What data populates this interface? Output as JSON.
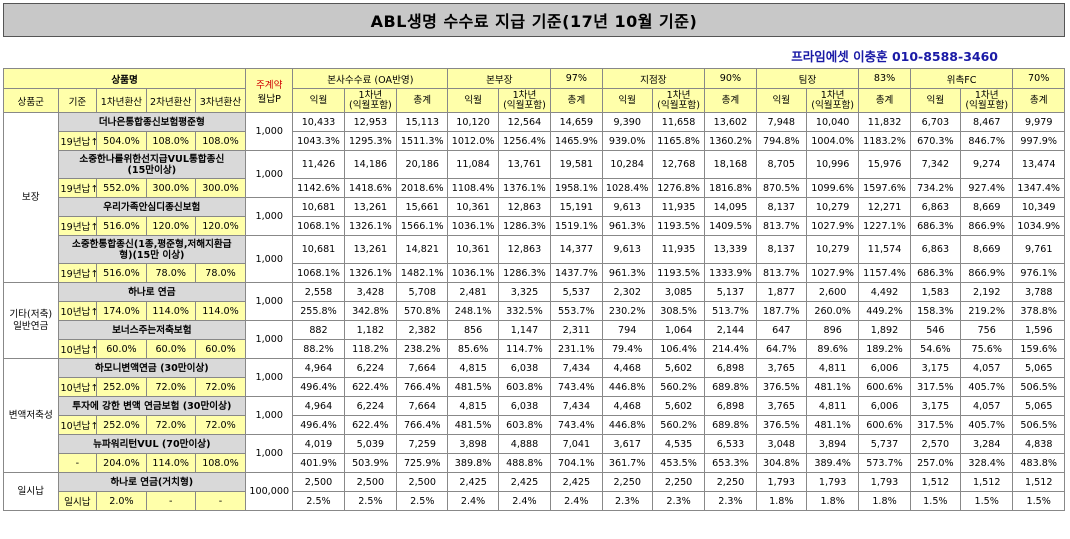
{
  "title": "ABL생명 수수료 지급 기준(17년 10월 기준)",
  "subtitle": "프라임에셋 이충훈 010-8588-3460",
  "header": {
    "product_group": "상품명",
    "monthly_top": "주계약",
    "monthly_bottom": "월납P",
    "sections": [
      {
        "label": "본사수수료 (OA반영)",
        "pct": ""
      },
      {
        "label": "본부장",
        "pct": "97%"
      },
      {
        "label": "지점장",
        "pct": "90%"
      },
      {
        "label": "팀장",
        "pct": "83%"
      },
      {
        "label": "위촉FC",
        "pct": "70%"
      }
    ],
    "sub_left": [
      "상품군",
      "기준",
      "1차년환산",
      "2차년환산",
      "3차년환산"
    ],
    "sub_cols": [
      "익월",
      "1차년\n(익월포함)",
      "총계"
    ]
  },
  "groups": [
    {
      "name": "보장",
      "products": [
        {
          "name": "더나은통합종신보험평준형",
          "monthly": "1,000",
          "basis": "19년납↑",
          "conv": [
            "504.0%",
            "108.0%",
            "108.0%"
          ],
          "amounts": [
            "10,433",
            "12,953",
            "15,113",
            "10,120",
            "12,564",
            "14,659",
            "9,390",
            "11,658",
            "13,602",
            "7,948",
            "10,040",
            "11,832",
            "6,703",
            "8,467",
            "9,979"
          ],
          "pcts": [
            "1043.3%",
            "1295.3%",
            "1511.3%",
            "1012.0%",
            "1256.4%",
            "1465.9%",
            "939.0%",
            "1165.8%",
            "1360.2%",
            "794.8%",
            "1004.0%",
            "1183.2%",
            "670.3%",
            "846.7%",
            "997.9%"
          ]
        },
        {
          "name": "소중한나를위한선지급VUL통합종신\n(15만이상)",
          "monthly": "1,000",
          "basis": "19년납↑",
          "conv": [
            "552.0%",
            "300.0%",
            "300.0%"
          ],
          "amounts": [
            "11,426",
            "14,186",
            "20,186",
            "11,084",
            "13,761",
            "19,581",
            "10,284",
            "12,768",
            "18,168",
            "8,705",
            "10,996",
            "15,976",
            "7,342",
            "9,274",
            "13,474"
          ],
          "pcts": [
            "1142.6%",
            "1418.6%",
            "2018.6%",
            "1108.4%",
            "1376.1%",
            "1958.1%",
            "1028.4%",
            "1276.8%",
            "1816.8%",
            "870.5%",
            "1099.6%",
            "1597.6%",
            "734.2%",
            "927.4%",
            "1347.4%"
          ]
        },
        {
          "name": "우리가족안심디종신보험",
          "monthly": "1,000",
          "basis": "19년납↑",
          "conv": [
            "516.0%",
            "120.0%",
            "120.0%"
          ],
          "amounts": [
            "10,681",
            "13,261",
            "15,661",
            "10,361",
            "12,863",
            "15,191",
            "9,613",
            "11,935",
            "14,095",
            "8,137",
            "10,279",
            "12,271",
            "6,863",
            "8,669",
            "10,349"
          ],
          "pcts": [
            "1068.1%",
            "1326.1%",
            "1566.1%",
            "1036.1%",
            "1286.3%",
            "1519.1%",
            "961.3%",
            "1193.5%",
            "1409.5%",
            "813.7%",
            "1027.9%",
            "1227.1%",
            "686.3%",
            "866.9%",
            "1034.9%"
          ]
        },
        {
          "name": "소중한통합종신(1종,평준형,저해지환급\n형)(15만 이상)",
          "monthly": "1,000",
          "basis": "19년납↑",
          "conv": [
            "516.0%",
            "78.0%",
            "78.0%"
          ],
          "amounts": [
            "10,681",
            "13,261",
            "14,821",
            "10,361",
            "12,863",
            "14,377",
            "9,613",
            "11,935",
            "13,339",
            "8,137",
            "10,279",
            "11,574",
            "6,863",
            "8,669",
            "9,761"
          ],
          "pcts": [
            "1068.1%",
            "1326.1%",
            "1482.1%",
            "1036.1%",
            "1286.3%",
            "1437.7%",
            "961.3%",
            "1193.5%",
            "1333.9%",
            "813.7%",
            "1027.9%",
            "1157.4%",
            "686.3%",
            "866.9%",
            "976.1%"
          ]
        }
      ]
    },
    {
      "name": "기타(저축)\n일반연금",
      "products": [
        {
          "name": "하나로 연금",
          "monthly": "1,000",
          "basis": "10년납↑",
          "conv": [
            "174.0%",
            "114.0%",
            "114.0%"
          ],
          "amounts": [
            "2,558",
            "3,428",
            "5,708",
            "2,481",
            "3,325",
            "5,537",
            "2,302",
            "3,085",
            "5,137",
            "1,877",
            "2,600",
            "4,492",
            "1,583",
            "2,192",
            "3,788"
          ],
          "pcts": [
            "255.8%",
            "342.8%",
            "570.8%",
            "248.1%",
            "332.5%",
            "553.7%",
            "230.2%",
            "308.5%",
            "513.7%",
            "187.7%",
            "260.0%",
            "449.2%",
            "158.3%",
            "219.2%",
            "378.8%"
          ]
        },
        {
          "name": "보너스주는저축보험",
          "monthly": "1,000",
          "basis": "10년납↑",
          "conv": [
            "60.0%",
            "60.0%",
            "60.0%"
          ],
          "amounts": [
            "882",
            "1,182",
            "2,382",
            "856",
            "1,147",
            "2,311",
            "794",
            "1,064",
            "2,144",
            "647",
            "896",
            "1,892",
            "546",
            "756",
            "1,596"
          ],
          "pcts": [
            "88.2%",
            "118.2%",
            "238.2%",
            "85.6%",
            "114.7%",
            "231.1%",
            "79.4%",
            "106.4%",
            "214.4%",
            "64.7%",
            "89.6%",
            "189.2%",
            "54.6%",
            "75.6%",
            "159.6%"
          ]
        }
      ]
    },
    {
      "name": "변액저축성",
      "products": [
        {
          "name": "하모니변액연금 (30만이상)",
          "monthly": "1,000",
          "basis": "10년납↑",
          "conv": [
            "252.0%",
            "72.0%",
            "72.0%"
          ],
          "amounts": [
            "4,964",
            "6,224",
            "7,664",
            "4,815",
            "6,038",
            "7,434",
            "4,468",
            "5,602",
            "6,898",
            "3,765",
            "4,811",
            "6,006",
            "3,175",
            "4,057",
            "5,065"
          ],
          "pcts": [
            "496.4%",
            "622.4%",
            "766.4%",
            "481.5%",
            "603.8%",
            "743.4%",
            "446.8%",
            "560.2%",
            "689.8%",
            "376.5%",
            "481.1%",
            "600.6%",
            "317.5%",
            "405.7%",
            "506.5%"
          ]
        },
        {
          "name": "투자에 강한 변액 연금보험 (30만이상)",
          "monthly": "1,000",
          "basis": "10년납↑",
          "conv": [
            "252.0%",
            "72.0%",
            "72.0%"
          ],
          "amounts": [
            "4,964",
            "6,224",
            "7,664",
            "4,815",
            "6,038",
            "7,434",
            "4,468",
            "5,602",
            "6,898",
            "3,765",
            "4,811",
            "6,006",
            "3,175",
            "4,057",
            "5,065"
          ],
          "pcts": [
            "496.4%",
            "622.4%",
            "766.4%",
            "481.5%",
            "603.8%",
            "743.4%",
            "446.8%",
            "560.2%",
            "689.8%",
            "376.5%",
            "481.1%",
            "600.6%",
            "317.5%",
            "405.7%",
            "506.5%"
          ]
        },
        {
          "name": "뉴파워리턴VUL (70만이상)",
          "monthly": "1,000",
          "basis": "-",
          "conv": [
            "204.0%",
            "114.0%",
            "108.0%"
          ],
          "amounts": [
            "4,019",
            "5,039",
            "7,259",
            "3,898",
            "4,888",
            "7,041",
            "3,617",
            "4,535",
            "6,533",
            "3,048",
            "3,894",
            "5,737",
            "2,570",
            "3,284",
            "4,838"
          ],
          "pcts": [
            "401.9%",
            "503.9%",
            "725.9%",
            "389.8%",
            "488.8%",
            "704.1%",
            "361.7%",
            "453.5%",
            "653.3%",
            "304.8%",
            "389.4%",
            "573.7%",
            "257.0%",
            "328.4%",
            "483.8%"
          ]
        }
      ]
    },
    {
      "name": "일시납",
      "products": [
        {
          "name": "하나로 연금(거치형)",
          "monthly": "100,000",
          "basis": "일시납",
          "conv": [
            "2.0%",
            "-",
            "-"
          ],
          "amounts": [
            "2,500",
            "2,500",
            "2,500",
            "2,425",
            "2,425",
            "2,425",
            "2,250",
            "2,250",
            "2,250",
            "1,793",
            "1,793",
            "1,793",
            "1,512",
            "1,512",
            "1,512"
          ],
          "pcts": [
            "2.5%",
            "2.5%",
            "2.5%",
            "2.4%",
            "2.4%",
            "2.4%",
            "2.3%",
            "2.3%",
            "2.3%",
            "1.8%",
            "1.8%",
            "1.8%",
            "1.5%",
            "1.5%",
            "1.5%"
          ]
        }
      ]
    }
  ]
}
